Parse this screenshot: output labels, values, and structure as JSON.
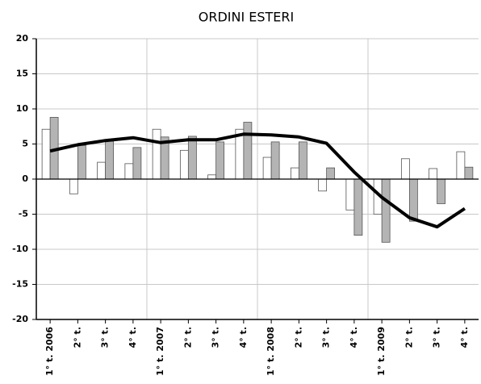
{
  "chart_data": {
    "type": "bar",
    "title": "ORDINI ESTERI",
    "categories": [
      "1° t. 2006",
      "2° t.",
      "3° t.",
      "4° t.",
      "1° t. 2007",
      "2° t.",
      "3° t.",
      "4° t.",
      "1° t. 2008",
      "2° t.",
      "3° t.",
      "4° t.",
      "1° t. 2009",
      "2° t.",
      "3° t.",
      "4° t."
    ],
    "series": [
      {
        "type": "bar",
        "color": "#ffffff",
        "values": [
          7.1,
          -2.1,
          2.4,
          2.2,
          7.1,
          4.1,
          0.6,
          7.1,
          3.1,
          1.6,
          -1.7,
          -4.4,
          -5.0,
          2.9,
          1.5,
          3.9
        ]
      },
      {
        "type": "bar",
        "color": "#b4b4b4",
        "values": [
          8.8,
          4.8,
          5.4,
          4.5,
          6.0,
          6.1,
          5.3,
          8.1,
          5.3,
          5.3,
          1.6,
          -8.0,
          -9.0,
          -6.0,
          -3.5,
          1.7
        ]
      },
      {
        "type": "line",
        "color": "#000000",
        "values": [
          4.0,
          4.9,
          5.5,
          5.9,
          5.2,
          5.6,
          5.6,
          6.4,
          6.3,
          6.0,
          5.1,
          1.0,
          -2.6,
          -5.5,
          -6.8,
          -4.2
        ]
      }
    ],
    "ylim": [
      -20,
      20
    ],
    "yticks": [
      -20,
      -15,
      -10,
      -5,
      0,
      5,
      10,
      15,
      20
    ],
    "grid": true
  }
}
